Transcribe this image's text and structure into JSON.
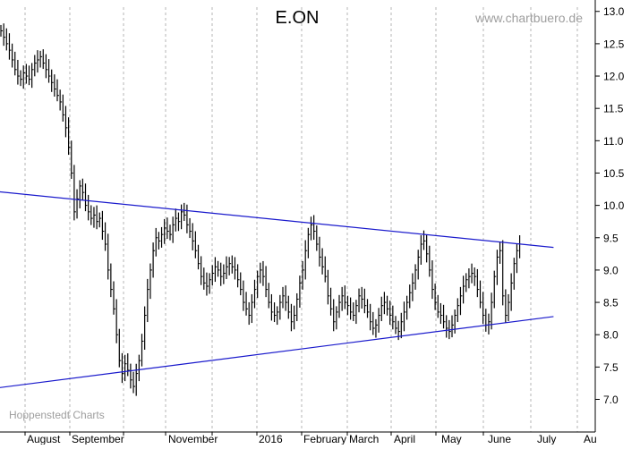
{
  "title": "E.ON",
  "watermark": "www.chartbuero.de",
  "source": "Hoppenstedt Charts",
  "chart_data": {
    "type": "bar",
    "subtype": "ohlc",
    "title": "E.ON",
    "xlabel": "",
    "ylabel": "",
    "ylim": [
      6.85,
      13.2
    ],
    "y_axis_side": "right",
    "grid": "vertical dashed at month boundaries",
    "ytick_labels": [
      "7.0",
      "7.5",
      "8.0",
      "8.5",
      "9.0",
      "9.5",
      "10.0",
      "10.5",
      "11.0",
      "11.5",
      "12.0",
      "12.5",
      "13.0"
    ],
    "xtick_labels": [
      "August",
      "September",
      "November",
      "2016",
      "February",
      "March",
      "April",
      "May",
      "June",
      "July",
      "Au"
    ],
    "close_series_days": [
      12.7,
      12.6,
      12.5,
      12.4,
      12.25,
      12.1,
      12.0,
      11.95,
      12.05,
      12.0,
      11.95,
      12.1,
      12.2,
      12.25,
      12.3,
      12.2,
      12.1,
      12.0,
      11.9,
      11.8,
      11.7,
      11.6,
      11.4,
      11.2,
      10.9,
      10.5,
      9.9,
      10.1,
      10.3,
      10.2,
      10.0,
      9.9,
      9.8,
      9.85,
      9.75,
      9.8,
      9.6,
      9.4,
      9.0,
      8.7,
      8.4,
      8.0,
      7.6,
      7.4,
      7.55,
      7.45,
      7.3,
      7.2,
      7.4,
      7.6,
      7.9,
      8.3,
      8.7,
      9.0,
      9.3,
      9.5,
      9.45,
      9.55,
      9.65,
      9.6,
      9.55,
      9.7,
      9.8,
      9.75,
      9.9,
      9.85,
      9.7,
      9.6,
      9.45,
      9.3,
      9.1,
      8.9,
      8.8,
      8.75,
      8.85,
      8.95,
      9.05,
      9.0,
      8.9,
      8.95,
      9.05,
      9.1,
      9.05,
      9.0,
      8.85,
      8.7,
      8.5,
      8.4,
      8.3,
      8.5,
      8.7,
      8.9,
      9.0,
      8.9,
      8.7,
      8.5,
      8.35,
      8.3,
      8.35,
      8.5,
      8.6,
      8.5,
      8.35,
      8.2,
      8.3,
      8.55,
      8.8,
      9.0,
      9.3,
      9.55,
      9.7,
      9.6,
      9.4,
      9.2,
      9.05,
      8.9,
      8.6,
      8.4,
      8.2,
      8.35,
      8.5,
      8.6,
      8.5,
      8.45,
      8.35,
      8.3,
      8.45,
      8.6,
      8.55,
      8.45,
      8.35,
      8.2,
      8.1,
      8.15,
      8.3,
      8.45,
      8.5,
      8.4,
      8.3,
      8.2,
      8.1,
      8.05,
      8.2,
      8.35,
      8.5,
      8.65,
      8.8,
      9.0,
      9.2,
      9.4,
      9.45,
      9.25,
      9.0,
      8.7,
      8.5,
      8.35,
      8.3,
      8.2,
      8.1,
      8.05,
      8.15,
      8.3,
      8.45,
      8.6,
      8.75,
      8.85,
      8.9,
      8.95,
      8.9,
      8.7,
      8.5,
      8.3,
      8.15,
      8.2,
      8.5,
      8.9,
      9.2,
      9.3,
      8.6,
      8.3,
      8.5,
      8.8,
      9.1,
      9.3,
      9.4
    ],
    "trendlines": [
      {
        "name": "upper",
        "from": {
          "day": -21,
          "value": 10.3
        },
        "to": {
          "day": 196,
          "value": 9.35
        }
      },
      {
        "name": "lower",
        "from": {
          "day": -24,
          "value": 7.05
        },
        "to": {
          "day": 196,
          "value": 8.28
        }
      }
    ]
  }
}
